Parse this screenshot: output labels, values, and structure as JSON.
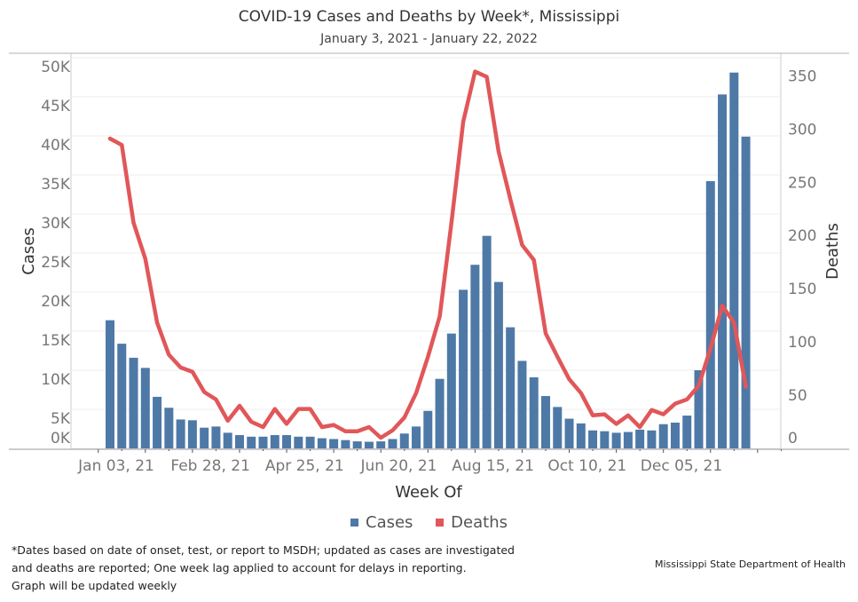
{
  "chart_data": {
    "type": "bar",
    "title": "COVID-19 Cases and Deaths by Week*, Mississippi",
    "subtitle": "January 3, 2021 - January 22, 2022",
    "xlabel": "Week Of",
    "ylabel": "Cases",
    "y2label": "Deaths",
    "ylim": [
      0,
      50000
    ],
    "y2lim": [
      0,
      367
    ],
    "yticks": [
      "0K",
      "5K",
      "10K",
      "15K",
      "20K",
      "25K",
      "30K",
      "35K",
      "40K",
      "45K",
      "50K"
    ],
    "y2ticks": [
      "0",
      "50",
      "100",
      "150",
      "200",
      "250",
      "300",
      "350"
    ],
    "xtick_labels": [
      "Jan 03, 21",
      "Feb 28, 21",
      "Apr 25, 21",
      "Jun 20, 21",
      "Aug 15, 21",
      "Oct 10, 21",
      "Dec 05, 21"
    ],
    "grid": true,
    "legend_placement": "bottom",
    "weeks_start": "2021-01-03",
    "series": [
      {
        "name": "Cases",
        "type": "bar",
        "axis": "left",
        "color": "#4e79a7",
        "values": [
          16400,
          13400,
          11600,
          10300,
          6600,
          5200,
          3700,
          3600,
          2650,
          2800,
          2000,
          1700,
          1500,
          1500,
          1700,
          1700,
          1500,
          1500,
          1300,
          1200,
          1060,
          900,
          850,
          900,
          1200,
          1900,
          2800,
          4800,
          8900,
          14700,
          20300,
          23500,
          27200,
          21300,
          15500,
          11200,
          9100,
          6700,
          5300,
          3800,
          3200,
          2300,
          2200,
          2000,
          2100,
          2400,
          2300,
          3100,
          3300,
          4200,
          10000,
          34200,
          45300,
          48100,
          39900
        ]
      },
      {
        "name": "Deaths",
        "type": "line",
        "axis": "right",
        "color": "#e15759",
        "values": [
          291,
          285,
          212,
          178,
          118,
          88,
          76,
          72,
          53,
          46,
          26,
          40,
          25,
          20,
          37,
          23,
          37,
          37,
          20,
          22,
          16,
          16,
          20,
          10,
          17,
          29,
          52,
          86,
          124,
          212,
          307,
          354,
          349,
          279,
          234,
          191,
          177,
          108,
          86,
          65,
          52,
          31,
          32,
          23,
          31,
          20,
          36,
          32,
          42,
          46,
          59,
          94,
          134,
          118,
          58
        ]
      }
    ]
  },
  "legend": {
    "cases": "Cases",
    "deaths": "Deaths"
  },
  "footnote": [
    "*Dates based on date of onset, test, or report to MSDH; updated as cases are investigated",
    "and deaths are reported; One week lag applied to account for delays in reporting.",
    "Graph will be updated weekly"
  ],
  "source": "Mississippi State Department of Health"
}
